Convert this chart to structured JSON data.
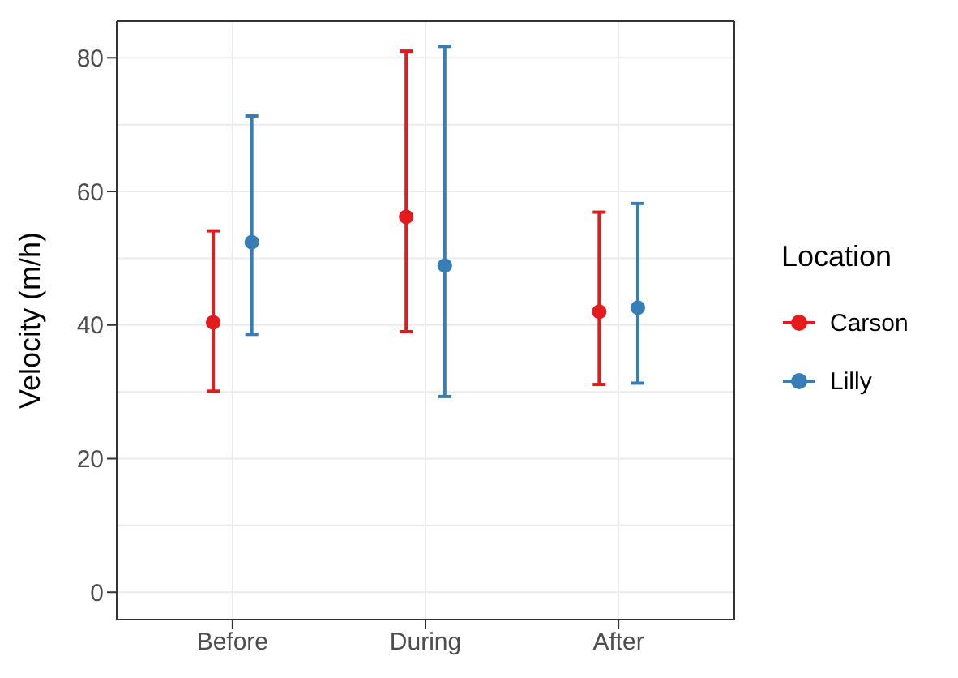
{
  "chart_data": {
    "type": "scatter",
    "ylabel": "Velocity (m/h)",
    "legend_title": "Location",
    "categories": [
      "Before",
      "During",
      "After"
    ],
    "series": [
      {
        "name": "Carson",
        "color": "#e41a1c",
        "values": [
          40.4,
          56.2,
          42.0
        ],
        "errors": [
          [
            30.1,
            54.1
          ],
          [
            39.0,
            81.0
          ],
          [
            31.1,
            56.9
          ]
        ]
      },
      {
        "name": "Lilly",
        "color": "#377eb8",
        "values": [
          52.4,
          48.9,
          42.6
        ],
        "errors": [
          [
            38.6,
            71.3
          ],
          [
            29.3,
            81.7
          ],
          [
            31.3,
            58.2
          ]
        ]
      }
    ],
    "ylim": [
      -4.1,
      85.5
    ],
    "yticks": [
      0,
      20,
      40,
      60,
      80
    ],
    "grid": true,
    "legend": "right",
    "marker": "circle"
  }
}
